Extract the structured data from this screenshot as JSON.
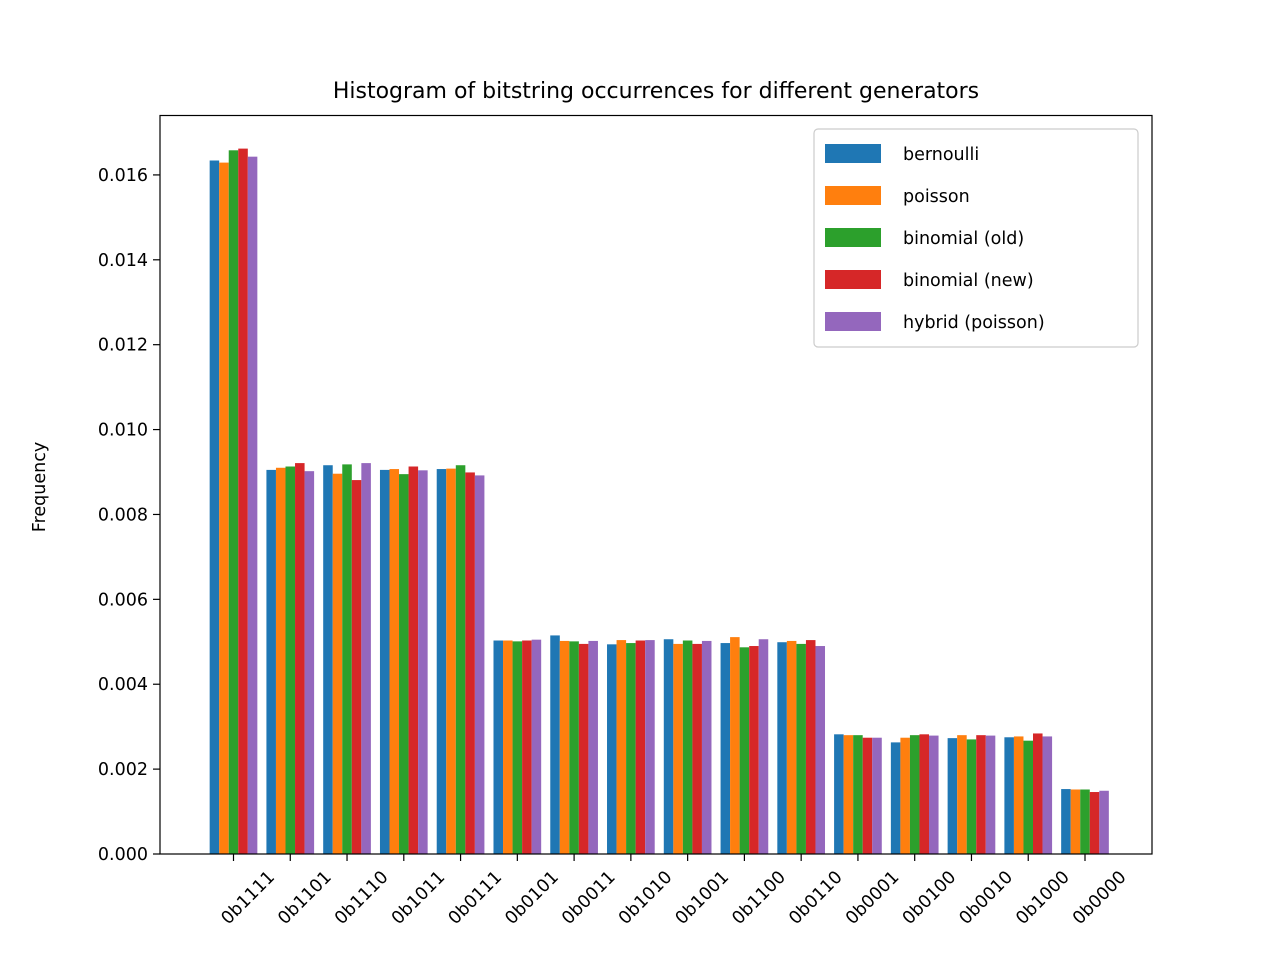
{
  "chart_data": {
    "type": "bar",
    "title": "Histogram of bitstring occurrences for different generators",
    "xlabel": "",
    "ylabel": "Frequency",
    "ylim": [
      0,
      0.0174
    ],
    "yticks": [
      "0.000",
      "0.002",
      "0.004",
      "0.006",
      "0.008",
      "0.010",
      "0.012",
      "0.014",
      "0.016"
    ],
    "legend_position": "top-right",
    "grid": false,
    "categories": [
      "0b1111",
      "0b1101",
      "0b1110",
      "0b1011",
      "0b0111",
      "0b0101",
      "0b0011",
      "0b1010",
      "0b1001",
      "0b1100",
      "0b0110",
      "0b0001",
      "0b0100",
      "0b0010",
      "0b1000",
      "0b0000"
    ],
    "series": [
      {
        "name": "bernoulli",
        "color": "#1f77b4",
        "values": [
          0.01634,
          0.00905,
          0.00916,
          0.00905,
          0.00907,
          0.00503,
          0.00515,
          0.00494,
          0.00506,
          0.00497,
          0.00499,
          0.00282,
          0.00263,
          0.00273,
          0.00275,
          0.00153
        ]
      },
      {
        "name": "poisson",
        "color": "#ff7f0e",
        "values": [
          0.01629,
          0.0091,
          0.00896,
          0.00907,
          0.00908,
          0.00503,
          0.00502,
          0.00504,
          0.00495,
          0.00511,
          0.00502,
          0.0028,
          0.00274,
          0.0028,
          0.00277,
          0.00152
        ]
      },
      {
        "name": "binomial (old)",
        "color": "#2ca02c",
        "values": [
          0.01658,
          0.00913,
          0.00918,
          0.00895,
          0.00916,
          0.00501,
          0.00501,
          0.00497,
          0.00503,
          0.00487,
          0.00495,
          0.0028,
          0.0028,
          0.0027,
          0.00267,
          0.00152
        ]
      },
      {
        "name": "binomial (new)",
        "color": "#d62728",
        "values": [
          0.01662,
          0.00921,
          0.00881,
          0.00913,
          0.00899,
          0.00503,
          0.00495,
          0.00503,
          0.00495,
          0.0049,
          0.00504,
          0.00274,
          0.00282,
          0.0028,
          0.00284,
          0.00146
        ]
      },
      {
        "name": "hybrid (poisson)",
        "color": "#9467bd",
        "values": [
          0.01643,
          0.00902,
          0.00921,
          0.00904,
          0.00892,
          0.00505,
          0.00502,
          0.00504,
          0.00502,
          0.00506,
          0.0049,
          0.00274,
          0.00279,
          0.00279,
          0.00277,
          0.00149
        ]
      }
    ]
  }
}
